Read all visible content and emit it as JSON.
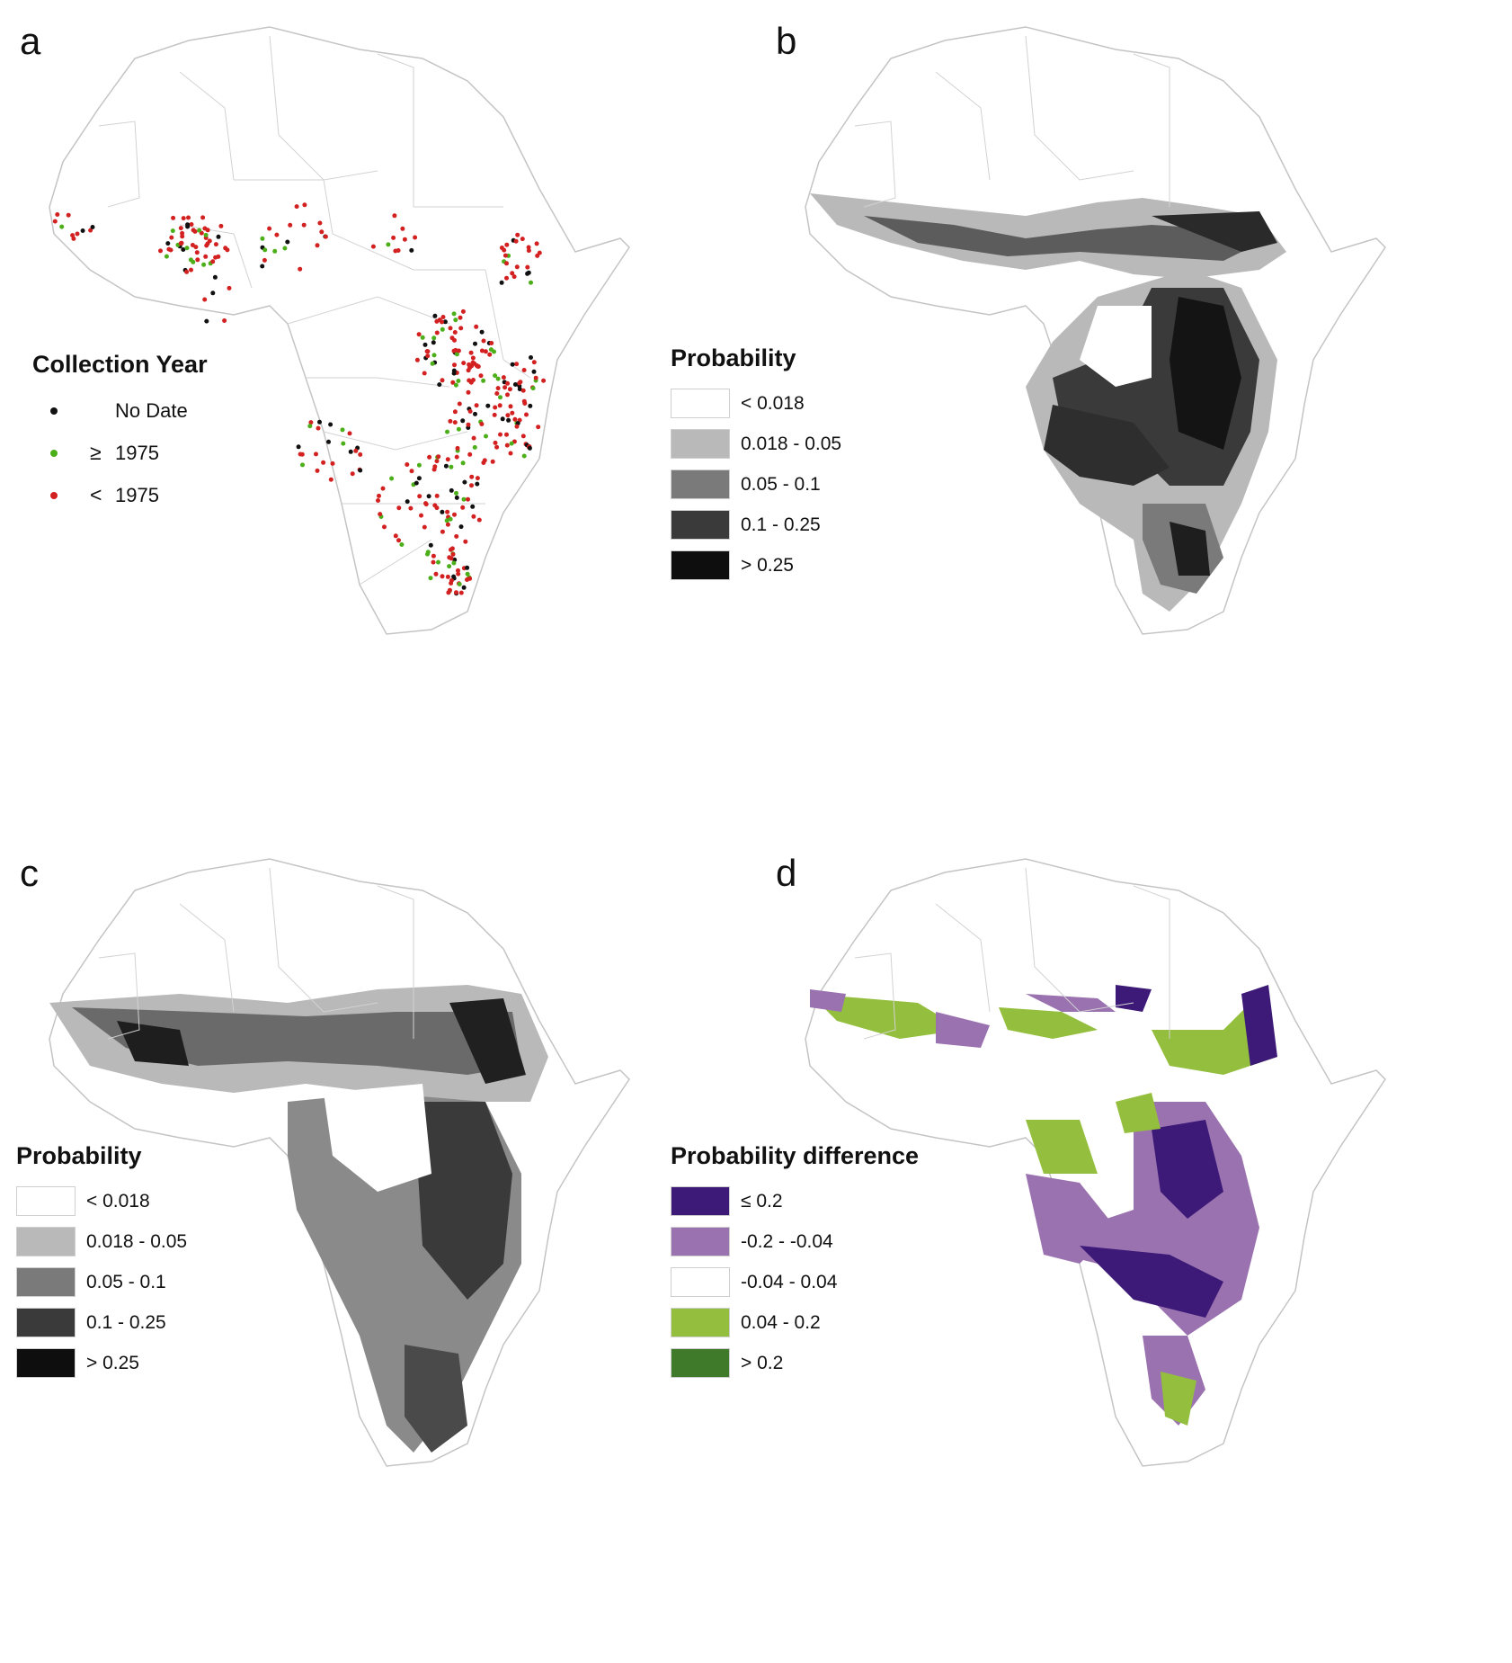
{
  "panels": [
    {
      "letter": "a",
      "legend": {
        "title": "Collection Year",
        "items": [
          {
            "symbol": "",
            "label": "No Date",
            "color": "#111111"
          },
          {
            "symbol": "≥",
            "label": "1975",
            "color": "#4caf1a"
          },
          {
            "symbol": "<",
            "label": "1975",
            "color": "#d32020"
          }
        ]
      }
    },
    {
      "letter": "b",
      "legend": {
        "title": "Probability",
        "items": [
          {
            "label": "< 0.018",
            "color": "#ffffff"
          },
          {
            "label": "0.018 - 0.05",
            "color": "#b9b9b9"
          },
          {
            "label": "0.05 - 0.1",
            "color": "#7a7a7a"
          },
          {
            "label": "0.1 - 0.25",
            "color": "#3a3a3a"
          },
          {
            "label": "> 0.25",
            "color": "#0e0e0e"
          }
        ]
      }
    },
    {
      "letter": "c",
      "legend": {
        "title": "Probability",
        "items": [
          {
            "label": "< 0.018",
            "color": "#ffffff"
          },
          {
            "label": "0.018 - 0.05",
            "color": "#b9b9b9"
          },
          {
            "label": "0.05 - 0.1",
            "color": "#7a7a7a"
          },
          {
            "label": "0.1 - 0.25",
            "color": "#3a3a3a"
          },
          {
            "label": "> 0.25",
            "color": "#0e0e0e"
          }
        ]
      }
    },
    {
      "letter": "d",
      "legend": {
        "title": "Probability difference",
        "items": [
          {
            "label": "≤ 0.2",
            "color": "#3d1a78"
          },
          {
            "label": "-0.2 - -0.04",
            "color": "#9b72b0"
          },
          {
            "label": "-0.04 - 0.04",
            "color": "#ffffff"
          },
          {
            "label": "0.04 - 0.2",
            "color": "#94bf3e"
          },
          {
            "label": "> 0.2",
            "color": "#3e7a2a"
          }
        ]
      }
    }
  ]
}
